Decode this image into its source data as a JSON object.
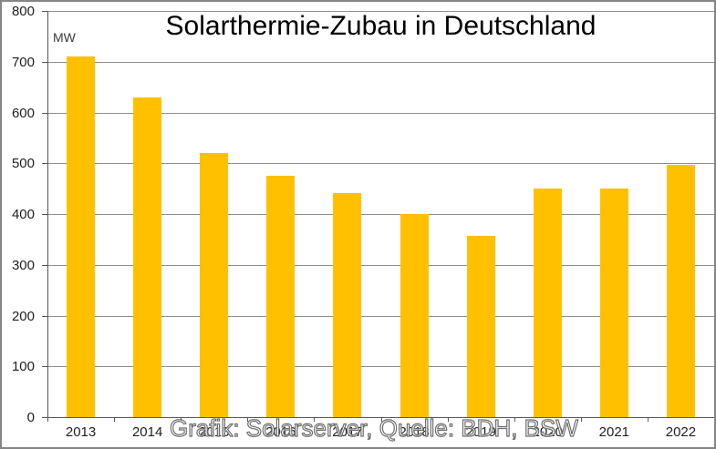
{
  "chart_data": {
    "type": "bar",
    "title": "Solarthermie-Zubau in Deutschland",
    "ylabel": "MW",
    "xlabel": "",
    "categories": [
      "2013",
      "2014",
      "2015",
      "2016",
      "2017",
      "2018",
      "2019",
      "2020",
      "2021",
      "2022"
    ],
    "values": [
      710,
      630,
      520,
      475,
      441,
      400,
      357,
      450,
      450,
      496
    ],
    "ylim": [
      0,
      800
    ],
    "ytick_interval": 100,
    "grid": true,
    "legend": "none",
    "colors": {
      "bar": "#FFC000",
      "gridline": "#8f8f8f",
      "axis": "#595959",
      "tick_label": "#1f1f1f",
      "title": "#000000",
      "watermark_outline": "#6f6f6f"
    }
  },
  "watermark": "Grafik: Solarserver, Quelle: BDH, BSW"
}
